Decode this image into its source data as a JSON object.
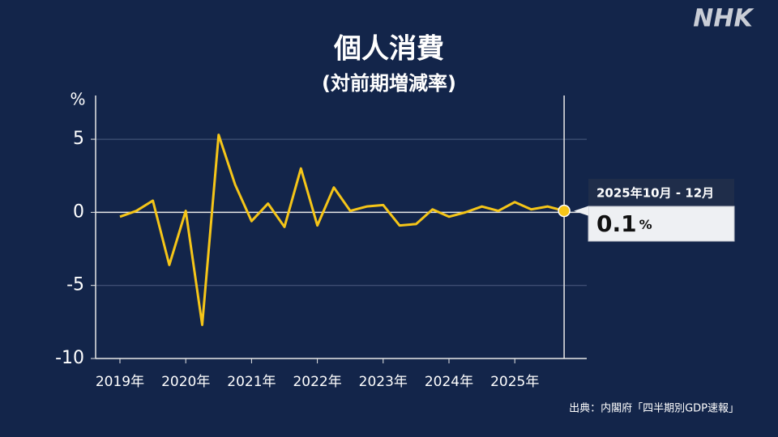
{
  "logo": "NHK",
  "source": "出典：内閣府「四半期別GDP速報」",
  "chart_data": {
    "type": "line",
    "title": "個人消費",
    "subtitle": "(対前期増減率)",
    "y_label": "%",
    "categories": [
      "2019年",
      null,
      null,
      null,
      "2020年",
      null,
      null,
      null,
      "2021年",
      null,
      null,
      null,
      "2022年",
      null,
      null,
      null,
      "2023年",
      null,
      null,
      null,
      "2024年",
      null,
      null,
      null,
      "2025年",
      null,
      null,
      null
    ],
    "series": [
      {
        "name": "個人消費",
        "color": "#f5c518",
        "values": [
          -0.3,
          0.1,
          0.8,
          -3.6,
          0.1,
          -7.7,
          5.3,
          1.9,
          -0.6,
          0.6,
          -1.0,
          3.0,
          -0.9,
          1.7,
          0.1,
          0.4,
          0.5,
          -0.9,
          -0.8,
          0.2,
          -0.3,
          0.0,
          0.4,
          0.1,
          0.7,
          0.2,
          0.4,
          0.1
        ]
      }
    ],
    "ylim": [
      -10,
      6
    ],
    "yticks": [
      5,
      0,
      -5,
      -10
    ],
    "grid": true,
    "callout": {
      "period": "2025年10月 - 12月",
      "unit": "%"
    }
  }
}
